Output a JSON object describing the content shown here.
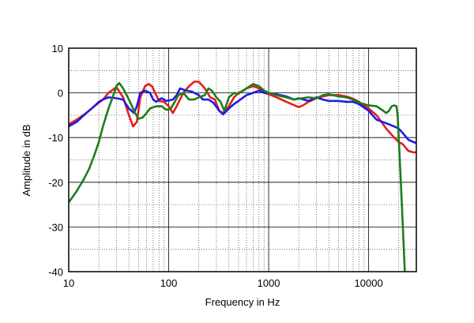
{
  "chart_data": {
    "type": "line",
    "title": "",
    "xlabel": "Frequency in Hz",
    "ylabel": "Amplitude in dB",
    "xscale": "log",
    "xlim": [
      10,
      30000
    ],
    "ylim": [
      -40,
      10
    ],
    "grid": true,
    "legend": "none",
    "x_ticks": [
      10,
      100,
      1000,
      10000
    ],
    "x_tick_labels": [
      "10",
      "100",
      "1000",
      "10000"
    ],
    "y_ticks": [
      10,
      0,
      -10,
      -20,
      -30,
      -40
    ],
    "y_tick_labels": [
      "10",
      "0",
      "-10",
      "-20",
      "-30",
      "-40"
    ],
    "series": [
      {
        "color": "#e81c1c",
        "points": [
          [
            10,
            -7
          ],
          [
            12,
            -6
          ],
          [
            15,
            -4.5
          ],
          [
            18,
            -3
          ],
          [
            22,
            -1.5
          ],
          [
            25,
            0
          ],
          [
            30,
            1.3
          ],
          [
            35,
            -1
          ],
          [
            40,
            -5
          ],
          [
            44,
            -7.5
          ],
          [
            48,
            -6.5
          ],
          [
            52,
            -1
          ],
          [
            58,
            1.5
          ],
          [
            63,
            2
          ],
          [
            68,
            1.5
          ],
          [
            75,
            -0.5
          ],
          [
            80,
            -1.8
          ],
          [
            90,
            -2
          ],
          [
            100,
            -3
          ],
          [
            110,
            -4.5
          ],
          [
            120,
            -3
          ],
          [
            140,
            0
          ],
          [
            160,
            1.5
          ],
          [
            180,
            2.5
          ],
          [
            200,
            2.5
          ],
          [
            230,
            1
          ],
          [
            260,
            -1
          ],
          [
            290,
            -1.5
          ],
          [
            320,
            -4
          ],
          [
            350,
            -4.5
          ],
          [
            400,
            -3
          ],
          [
            450,
            -1
          ],
          [
            500,
            0
          ],
          [
            560,
            0.5
          ],
          [
            600,
            1
          ],
          [
            700,
            1.5
          ],
          [
            800,
            1
          ],
          [
            900,
            0
          ],
          [
            1000,
            -0.3
          ],
          [
            1200,
            -1
          ],
          [
            1500,
            -2
          ],
          [
            2000,
            -3.2
          ],
          [
            2200,
            -2.8
          ],
          [
            2500,
            -2
          ],
          [
            3000,
            -1.2
          ],
          [
            3500,
            -0.8
          ],
          [
            4000,
            -0.5
          ],
          [
            5000,
            -0.5
          ],
          [
            6000,
            -0.8
          ],
          [
            7000,
            -1.3
          ],
          [
            8000,
            -2
          ],
          [
            10000,
            -3.5
          ],
          [
            12000,
            -5
          ],
          [
            15000,
            -8
          ],
          [
            18000,
            -10
          ],
          [
            20000,
            -11
          ],
          [
            22000,
            -11.5
          ],
          [
            25000,
            -13
          ],
          [
            28000,
            -13.3
          ],
          [
            30000,
            -13.3
          ]
        ]
      },
      {
        "color": "#1c1ce8",
        "points": [
          [
            10,
            -7.5
          ],
          [
            12,
            -6.5
          ],
          [
            15,
            -4.5
          ],
          [
            18,
            -3
          ],
          [
            20,
            -2
          ],
          [
            22,
            -1.5
          ],
          [
            25,
            -1
          ],
          [
            30,
            -1.2
          ],
          [
            35,
            -1.5
          ],
          [
            40,
            -3.5
          ],
          [
            45,
            -4.5
          ],
          [
            48,
            -3
          ],
          [
            52,
            0
          ],
          [
            58,
            0.5
          ],
          [
            65,
            0
          ],
          [
            70,
            -1.5
          ],
          [
            75,
            -2
          ],
          [
            85,
            -1.2
          ],
          [
            95,
            -1.8
          ],
          [
            110,
            -1.5
          ],
          [
            120,
            -0.5
          ],
          [
            130,
            1
          ],
          [
            150,
            0.5
          ],
          [
            170,
            0.3
          ],
          [
            200,
            -0.5
          ],
          [
            220,
            -1.5
          ],
          [
            250,
            -1.5
          ],
          [
            280,
            -2.2
          ],
          [
            320,
            -4
          ],
          [
            350,
            -4.8
          ],
          [
            400,
            -3.5
          ],
          [
            450,
            -2.5
          ],
          [
            500,
            -1.8
          ],
          [
            600,
            -0.5
          ],
          [
            700,
            0
          ],
          [
            800,
            0.5
          ],
          [
            900,
            0
          ],
          [
            1000,
            0
          ],
          [
            1200,
            -0.3
          ],
          [
            1500,
            -0.8
          ],
          [
            1800,
            -1.5
          ],
          [
            2000,
            -1.2
          ],
          [
            2500,
            -1.8
          ],
          [
            3000,
            -1
          ],
          [
            3500,
            -1.5
          ],
          [
            4000,
            -1.8
          ],
          [
            5000,
            -1.8
          ],
          [
            6000,
            -2
          ],
          [
            7000,
            -2
          ],
          [
            8000,
            -2.5
          ],
          [
            10000,
            -4
          ],
          [
            12000,
            -6
          ],
          [
            15000,
            -6.8
          ],
          [
            18000,
            -7.5
          ],
          [
            20000,
            -8
          ],
          [
            22000,
            -9
          ],
          [
            25000,
            -10.5
          ],
          [
            28000,
            -11
          ],
          [
            30000,
            -11.2
          ]
        ]
      },
      {
        "color": "#1c7d1c",
        "points": [
          [
            10,
            -24.5
          ],
          [
            12,
            -22
          ],
          [
            14,
            -19.5
          ],
          [
            16,
            -17
          ],
          [
            18,
            -14
          ],
          [
            20,
            -11
          ],
          [
            22,
            -7.5
          ],
          [
            25,
            -3.5
          ],
          [
            28,
            -0.5
          ],
          [
            30,
            1.5
          ],
          [
            32,
            2.2
          ],
          [
            35,
            1
          ],
          [
            38,
            -0.5
          ],
          [
            42,
            -2.5
          ],
          [
            46,
            -4.5
          ],
          [
            50,
            -5.8
          ],
          [
            55,
            -5.5
          ],
          [
            60,
            -4.5
          ],
          [
            65,
            -3.5
          ],
          [
            75,
            -3
          ],
          [
            85,
            -3
          ],
          [
            95,
            -3.8
          ],
          [
            105,
            -3.5
          ],
          [
            115,
            -2
          ],
          [
            125,
            -0.5
          ],
          [
            140,
            0
          ],
          [
            160,
            -1.5
          ],
          [
            180,
            -1.5
          ],
          [
            200,
            -1
          ],
          [
            230,
            -0.5
          ],
          [
            250,
            1
          ],
          [
            270,
            0.5
          ],
          [
            300,
            -1
          ],
          [
            330,
            -2
          ],
          [
            360,
            -4
          ],
          [
            380,
            -2.5
          ],
          [
            400,
            -1
          ],
          [
            450,
            0
          ],
          [
            500,
            -0.2
          ],
          [
            550,
            0.5
          ],
          [
            600,
            1
          ],
          [
            700,
            2
          ],
          [
            800,
            1.5
          ],
          [
            900,
            0.5
          ],
          [
            1000,
            0
          ],
          [
            1200,
            -0.5
          ],
          [
            1500,
            -1
          ],
          [
            1800,
            -1.5
          ],
          [
            2000,
            -1.3
          ],
          [
            2500,
            -1
          ],
          [
            3000,
            -1.2
          ],
          [
            3500,
            -0.5
          ],
          [
            4000,
            -0.3
          ],
          [
            5000,
            -0.8
          ],
          [
            6000,
            -1
          ],
          [
            7000,
            -1.5
          ],
          [
            8000,
            -2.2
          ],
          [
            10000,
            -2.8
          ],
          [
            12000,
            -3
          ],
          [
            14000,
            -4
          ],
          [
            15000,
            -4.5
          ],
          [
            16000,
            -4
          ],
          [
            17000,
            -3
          ],
          [
            18000,
            -2.8
          ],
          [
            19000,
            -3
          ],
          [
            19500,
            -5
          ],
          [
            20000,
            -10
          ],
          [
            21000,
            -20
          ],
          [
            22000,
            -30
          ],
          [
            23000,
            -40
          ]
        ]
      }
    ]
  }
}
